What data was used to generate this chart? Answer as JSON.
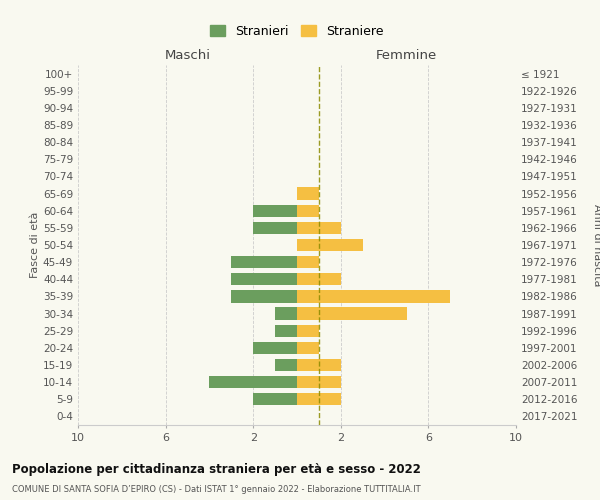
{
  "age_groups": [
    "100+",
    "95-99",
    "90-94",
    "85-89",
    "80-84",
    "75-79",
    "70-74",
    "65-69",
    "60-64",
    "55-59",
    "50-54",
    "45-49",
    "40-44",
    "35-39",
    "30-34",
    "25-29",
    "20-24",
    "15-19",
    "10-14",
    "5-9",
    "0-4"
  ],
  "birth_years": [
    "≤ 1921",
    "1922-1926",
    "1927-1931",
    "1932-1936",
    "1937-1941",
    "1942-1946",
    "1947-1951",
    "1952-1956",
    "1957-1961",
    "1962-1966",
    "1967-1971",
    "1972-1976",
    "1977-1981",
    "1982-1986",
    "1987-1991",
    "1992-1996",
    "1997-2001",
    "2002-2006",
    "2007-2011",
    "2012-2016",
    "2017-2021"
  ],
  "males": [
    0,
    0,
    0,
    0,
    0,
    0,
    0,
    0,
    2,
    2,
    0,
    3,
    3,
    3,
    1,
    1,
    2,
    1,
    4,
    2,
    0
  ],
  "females": [
    0,
    0,
    0,
    0,
    0,
    0,
    0,
    1,
    1,
    2,
    3,
    1,
    2,
    7,
    5,
    1,
    1,
    2,
    2,
    2,
    0
  ],
  "male_color": "#6b9e5e",
  "female_color": "#f5bf42",
  "center_line_color": "#8B8B00",
  "grid_color": "#cccccc",
  "bg_color": "#f9f9f0",
  "title": "Popolazione per cittadinanza straniera per età e sesso - 2022",
  "subtitle": "COMUNE DI SANTA SOFIA D’EPIRO (CS) - Dati ISTAT 1° gennaio 2022 - Elaborazione TUTTITALIA.IT",
  "left_label": "Maschi",
  "right_label": "Femmine",
  "legend_males": "Stranieri",
  "legend_females": "Straniere",
  "ylabel": "Fasce di età",
  "right_ylabel": "Anni di nascita",
  "bar_height": 0.72
}
